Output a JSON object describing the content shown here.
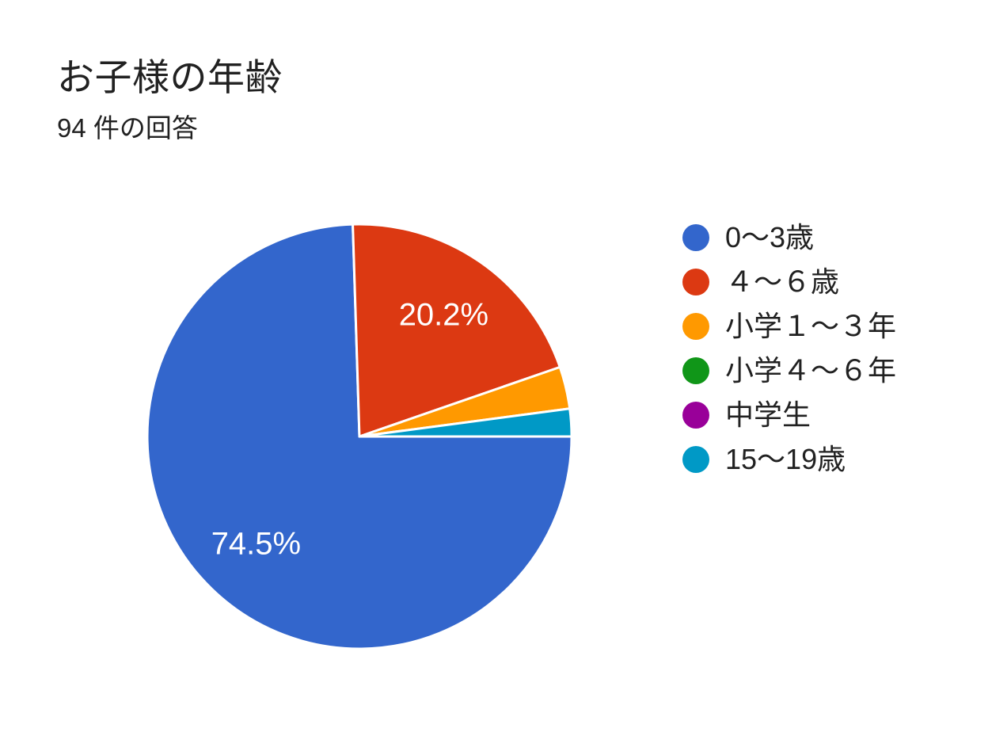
{
  "header": {
    "title": "お子様の年齢",
    "subtitle": "94 件の回答"
  },
  "chart_data": {
    "type": "pie",
    "title": "お子様の年齢",
    "subtitle": "94 件の回答",
    "total_responses": 94,
    "legend_position": "right",
    "start_angle_deg": 90,
    "direction": "clockwise",
    "slice_gap_color": "#ffffff",
    "slices": [
      {
        "label": "0〜3歳",
        "percent": 74.5,
        "percent_label": "74.5%",
        "show_label": true,
        "color": "#3366CC"
      },
      {
        "label": "４〜６歳",
        "percent": 20.2,
        "percent_label": "20.2%",
        "show_label": true,
        "color": "#DC3912"
      },
      {
        "label": "小学１〜３年",
        "percent": 3.2,
        "percent_label": "",
        "show_label": false,
        "color": "#FF9900"
      },
      {
        "label": "小学４〜６年",
        "percent": 0,
        "percent_label": "",
        "show_label": false,
        "color": "#109618"
      },
      {
        "label": "中学生",
        "percent": 0,
        "percent_label": "",
        "show_label": false,
        "color": "#990099"
      },
      {
        "label": "15〜19歳",
        "percent": 2.1,
        "percent_label": "",
        "show_label": false,
        "color": "#0099C6"
      }
    ]
  }
}
